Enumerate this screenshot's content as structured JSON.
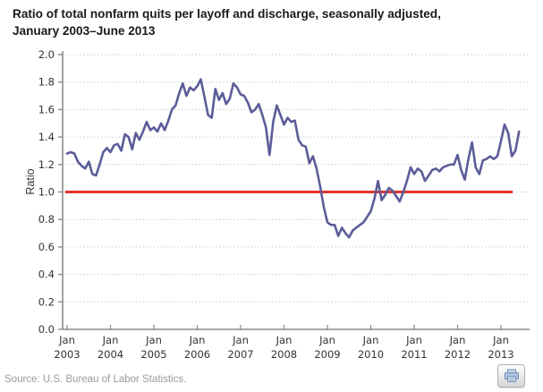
{
  "title": {
    "line1": "Ratio of total nonfarm quits per layoff and discharge, seasonally adjusted,",
    "line2": "January 2003–June 2013"
  },
  "source_note": "Source: U.S. Bureau of Labor Statistics.",
  "chart_data": {
    "type": "line",
    "title": "Ratio of total nonfarm quits per layoff and discharge, seasonally adjusted, January 2003–June 2013",
    "xlabel": "",
    "ylabel": "Ratio",
    "ylim": [
      0.0,
      2.0
    ],
    "ytick_step": 0.2,
    "grid": "horizontal-dotted",
    "legend": "none",
    "x_range": [
      "Jan 2003",
      "Jun 2013"
    ],
    "x_ticks": [
      {
        "month_index": 0,
        "label_top": "Jan",
        "label_bottom": "2003"
      },
      {
        "month_index": 12,
        "label_top": "Jan",
        "label_bottom": "2004"
      },
      {
        "month_index": 24,
        "label_top": "Jan",
        "label_bottom": "2005"
      },
      {
        "month_index": 36,
        "label_top": "Jan",
        "label_bottom": "2006"
      },
      {
        "month_index": 48,
        "label_top": "Jan",
        "label_bottom": "2007"
      },
      {
        "month_index": 60,
        "label_top": "Jan",
        "label_bottom": "2008"
      },
      {
        "month_index": 72,
        "label_top": "Jan",
        "label_bottom": "2009"
      },
      {
        "month_index": 84,
        "label_top": "Jan",
        "label_bottom": "2010"
      },
      {
        "month_index": 96,
        "label_top": "Jan",
        "label_bottom": "2011"
      },
      {
        "month_index": 108,
        "label_top": "Jan",
        "label_bottom": "2012"
      },
      {
        "month_index": 120,
        "label_top": "Jan",
        "label_bottom": "2013"
      }
    ],
    "reference_line": {
      "value": 1.0,
      "color": "#e5322d"
    },
    "series": [
      {
        "name": "Quits per layoff and discharge",
        "color": "#5c5c99",
        "start_month": "2003-01",
        "values": [
          1.28,
          1.29,
          1.28,
          1.22,
          1.19,
          1.17,
          1.22,
          1.13,
          1.12,
          1.2,
          1.29,
          1.32,
          1.29,
          1.34,
          1.35,
          1.3,
          1.42,
          1.4,
          1.31,
          1.43,
          1.38,
          1.44,
          1.51,
          1.45,
          1.47,
          1.44,
          1.5,
          1.45,
          1.52,
          1.6,
          1.63,
          1.72,
          1.79,
          1.7,
          1.76,
          1.74,
          1.77,
          1.82,
          1.69,
          1.56,
          1.54,
          1.75,
          1.67,
          1.72,
          1.64,
          1.68,
          1.79,
          1.76,
          1.71,
          1.7,
          1.65,
          1.58,
          1.6,
          1.64,
          1.56,
          1.47,
          1.27,
          1.51,
          1.63,
          1.56,
          1.49,
          1.54,
          1.51,
          1.52,
          1.38,
          1.34,
          1.33,
          1.21,
          1.26,
          1.17,
          1.04,
          0.89,
          0.78,
          0.76,
          0.76,
          0.68,
          0.74,
          0.7,
          0.67,
          0.72,
          0.74,
          0.76,
          0.78,
          0.82,
          0.86,
          0.95,
          1.08,
          0.94,
          0.98,
          1.03,
          1.01,
          0.97,
          0.93,
          1.0,
          1.08,
          1.18,
          1.13,
          1.17,
          1.15,
          1.08,
          1.12,
          1.16,
          1.17,
          1.15,
          1.18,
          1.19,
          1.2,
          1.2,
          1.27,
          1.16,
          1.09,
          1.24,
          1.36,
          1.18,
          1.13,
          1.23,
          1.24,
          1.26,
          1.24,
          1.26,
          1.37,
          1.49,
          1.43,
          1.26,
          1.3,
          1.44
        ]
      }
    ],
    "colors": {
      "line": "#5c5c99",
      "reference_line": "#e5322d",
      "grid": "#c9c9c9",
      "axis": "#8c8c8c",
      "tick_text": "#333333"
    }
  },
  "print_icon": "printer-icon"
}
